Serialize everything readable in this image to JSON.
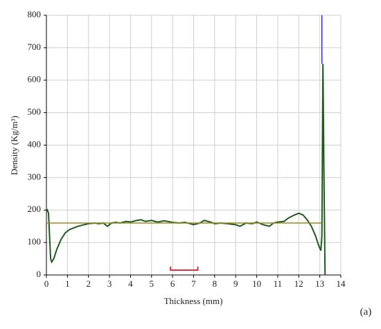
{
  "chart_data": {
    "type": "line",
    "xlabel": "Thickness (mm)",
    "ylabel": "Density (Kg/m³)",
    "panel_label": "(a)",
    "xlim": [
      0,
      14
    ],
    "xticks": [
      0,
      1,
      2,
      3,
      4,
      5,
      6,
      7,
      8,
      9,
      10,
      11,
      12,
      13,
      14
    ],
    "ylim": [
      0,
      800
    ],
    "yticks": [
      0,
      100,
      200,
      300,
      400,
      500,
      600,
      700,
      800
    ],
    "grid": true,
    "series": [
      {
        "color": "#1e5a1e",
        "x": [
          0,
          0.05,
          0.1,
          0.15,
          0.2,
          0.25,
          0.35,
          0.5,
          0.7,
          0.9,
          1.1,
          1.3,
          1.5,
          1.8,
          2,
          2.3,
          2.5,
          2.7,
          2.9,
          3.1,
          3.3,
          3.5,
          3.8,
          4,
          4.3,
          4.5,
          4.7,
          5,
          5.3,
          5.6,
          6,
          6.3,
          6.6,
          7,
          7.3,
          7.5,
          7.8,
          8,
          8.3,
          8.6,
          9,
          9.2,
          9.5,
          9.8,
          10,
          10.3,
          10.6,
          10.8,
          11,
          11.3,
          11.5,
          11.8,
          12,
          12.2,
          12.4,
          12.6,
          12.8,
          12.95,
          13.05,
          13.1,
          13.15,
          13.2,
          13.25
        ],
        "values": [
          195,
          200,
          190,
          120,
          50,
          40,
          50,
          80,
          110,
          130,
          140,
          145,
          150,
          155,
          158,
          160,
          158,
          160,
          150,
          160,
          162,
          160,
          165,
          163,
          168,
          170,
          165,
          168,
          163,
          167,
          162,
          160,
          162,
          155,
          160,
          168,
          163,
          158,
          160,
          158,
          155,
          150,
          160,
          158,
          163,
          155,
          150,
          160,
          163,
          165,
          175,
          185,
          190,
          185,
          170,
          150,
          120,
          90,
          75,
          120,
          650,
          300,
          0
        ]
      },
      {
        "color": "#9a8a1a",
        "x": [
          0,
          13.1
        ],
        "values": [
          160,
          160
        ]
      },
      {
        "color": "#2a2ad0",
        "x": [
          13.1,
          13.1
        ],
        "values": [
          650,
          800
        ]
      }
    ],
    "highlight_range": {
      "x": [
        5.9,
        7.2
      ],
      "color": "#e0303a"
    }
  }
}
